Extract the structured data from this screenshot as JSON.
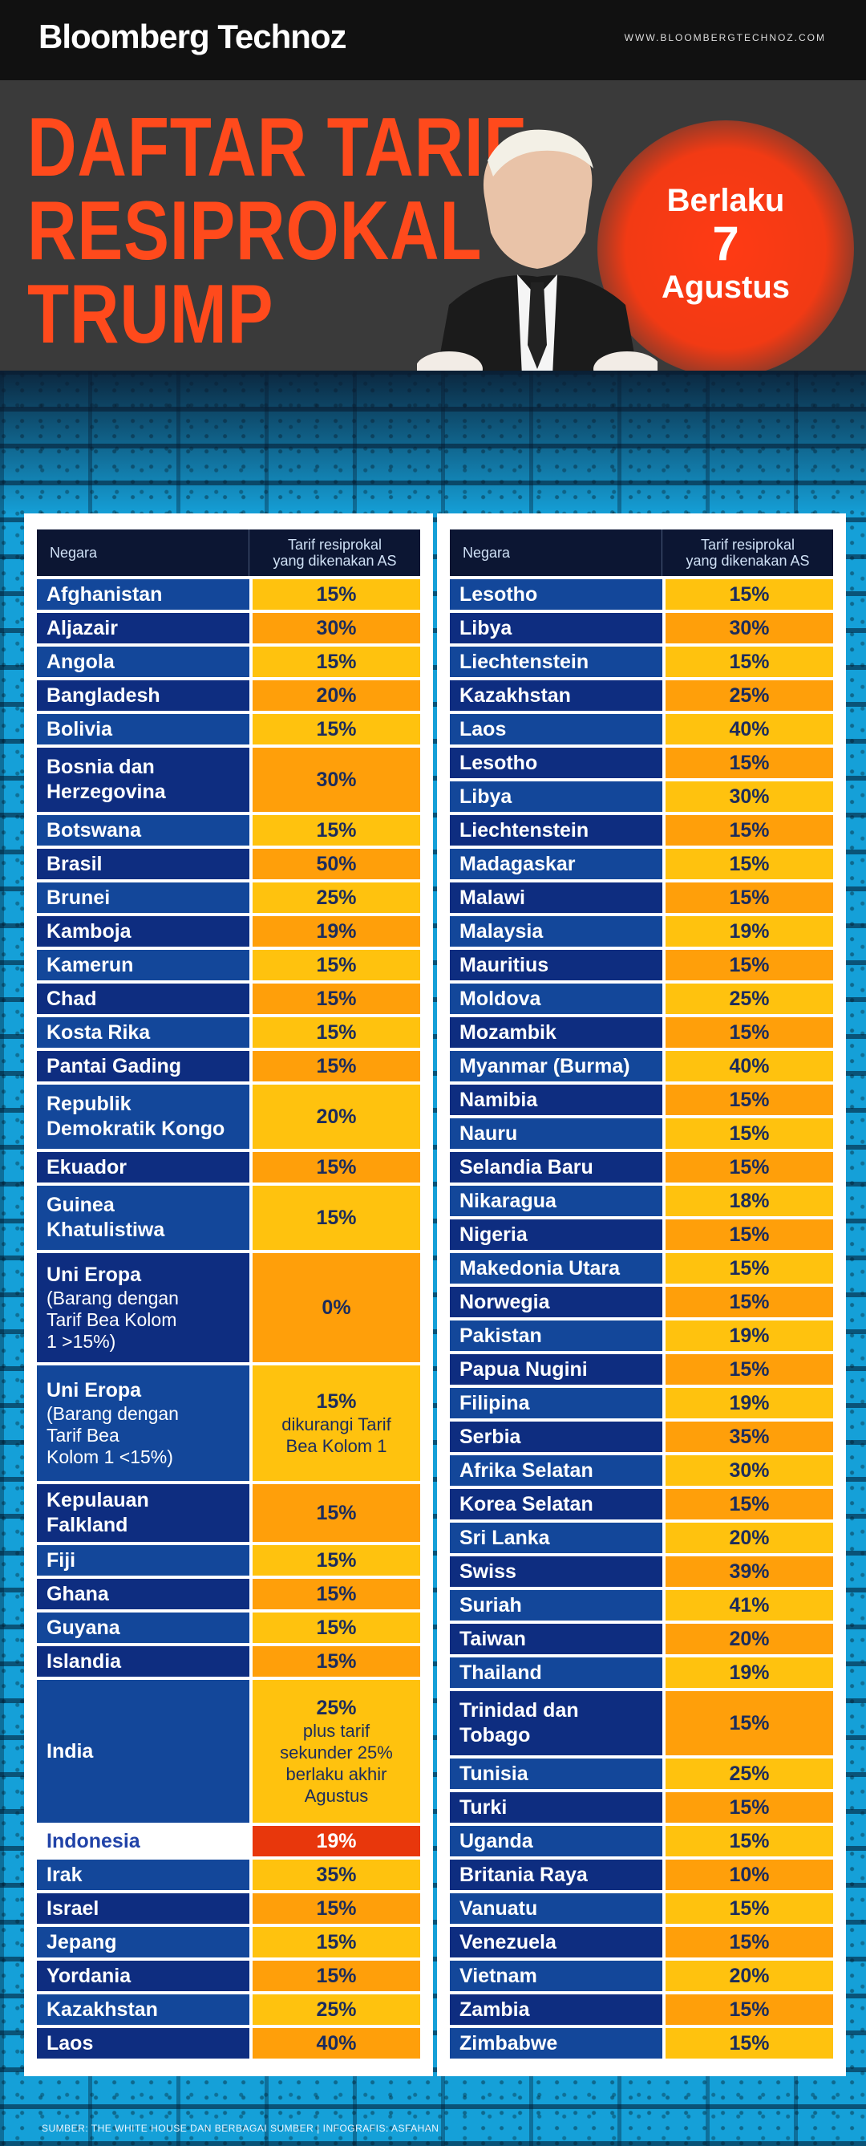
{
  "brand": "Bloomberg Technoz",
  "site": "WWW.BLOOMBERGTECHNOZ.COM",
  "title": [
    "DAFTAR TARIF",
    "RESIPROKAL",
    "TRUMP"
  ],
  "badge": {
    "line1": "Berlaku",
    "line2": "7",
    "line3": "Agustus"
  },
  "table_header": {
    "col1": "Negara",
    "col2_line1": "Tarif resiprokal",
    "col2_line2": "yang dikenakan AS"
  },
  "left_rows": [
    {
      "lines": [
        "Afghanistan"
      ],
      "value": "15%",
      "h": 38
    },
    {
      "lines": [
        "Aljazair"
      ],
      "value": "30%",
      "h": 38
    },
    {
      "lines": [
        "Angola"
      ],
      "value": "15%",
      "h": 38
    },
    {
      "lines": [
        "Bangladesh"
      ],
      "value": "20%",
      "h": 38
    },
    {
      "lines": [
        "Bolivia"
      ],
      "value": "15%",
      "h": 38
    },
    {
      "lines": [
        "Bosnia dan",
        "Herzegovina"
      ],
      "value": "30%",
      "h": 80
    },
    {
      "lines": [
        "Botswana"
      ],
      "value": "15%",
      "h": 38
    },
    {
      "lines": [
        "Brasil"
      ],
      "value": "50%",
      "h": 38
    },
    {
      "lines": [
        "Brunei"
      ],
      "value": "25%",
      "h": 38
    },
    {
      "lines": [
        "Kamboja"
      ],
      "value": "19%",
      "h": 38
    },
    {
      "lines": [
        "Kamerun"
      ],
      "value": "15%",
      "h": 38
    },
    {
      "lines": [
        "Chad"
      ],
      "value": "15%",
      "h": 38
    },
    {
      "lines": [
        "Kosta Rika"
      ],
      "value": "15%",
      "h": 38
    },
    {
      "lines": [
        "Pantai Gading"
      ],
      "value": "15%",
      "h": 38
    },
    {
      "lines": [
        "Republik",
        "Demokratik Kongo"
      ],
      "value": "20%",
      "h": 80
    },
    {
      "lines": [
        "Ekuador"
      ],
      "value": "15%",
      "h": 38
    },
    {
      "lines": [
        "Guinea",
        "Khatulistiwa"
      ],
      "value": "15%",
      "h": 80
    },
    {
      "lines": [
        "Uni Eropa"
      ],
      "sub": [
        "(Barang dengan",
        "Tarif Bea Kolom",
        "1 >15%)"
      ],
      "value": "0%",
      "h": 136
    },
    {
      "lines": [
        "Uni Eropa"
      ],
      "sub": [
        "(Barang dengan",
        "Tarif Bea",
        "Kolom 1 <15%)"
      ],
      "value": "15%",
      "vsub": [
        "dikurangi Tarif",
        "Bea Kolom 1"
      ],
      "h": 144
    },
    {
      "lines": [
        "Kepulauan",
        "Falkland"
      ],
      "value": "15%",
      "h": 72
    },
    {
      "lines": [
        "Fiji"
      ],
      "value": "15%",
      "h": 38
    },
    {
      "lines": [
        "Ghana"
      ],
      "value": "15%",
      "h": 38
    },
    {
      "lines": [
        "Guyana"
      ],
      "value": "15%",
      "h": 38
    },
    {
      "lines": [
        "Islandia"
      ],
      "value": "15%",
      "h": 38
    },
    {
      "lines": [
        "India"
      ],
      "value": "25%",
      "vsub": [
        "plus tarif",
        "sekunder 25%",
        "berlaku akhir",
        "Agustus"
      ],
      "h": 178
    },
    {
      "lines": [
        "Indonesia"
      ],
      "value": "19%",
      "h": 38,
      "highlight": true
    },
    {
      "lines": [
        "Irak"
      ],
      "value": "35%",
      "h": 38
    },
    {
      "lines": [
        "Israel"
      ],
      "value": "15%",
      "h": 38
    },
    {
      "lines": [
        "Jepang"
      ],
      "value": "15%",
      "h": 38
    },
    {
      "lines": [
        "Yordania"
      ],
      "value": "15%",
      "h": 38
    },
    {
      "lines": [
        "Kazakhstan"
      ],
      "value": "25%",
      "h": 38
    },
    {
      "lines": [
        "Laos"
      ],
      "value": "40%",
      "h": 38
    }
  ],
  "right_rows": [
    {
      "lines": [
        "Lesotho"
      ],
      "value": "15%",
      "h": 38
    },
    {
      "lines": [
        "Libya"
      ],
      "value": "30%",
      "h": 38
    },
    {
      "lines": [
        "Liechtenstein"
      ],
      "value": "15%",
      "h": 38
    },
    {
      "lines": [
        "Kazakhstan"
      ],
      "value": "25%",
      "h": 38
    },
    {
      "lines": [
        "Laos"
      ],
      "value": "40%",
      "h": 38
    },
    {
      "lines": [
        "Lesotho"
      ],
      "value": "15%",
      "h": 38
    },
    {
      "lines": [
        "Libya"
      ],
      "value": "30%",
      "h": 38
    },
    {
      "lines": [
        "Liechtenstein"
      ],
      "value": "15%",
      "h": 38
    },
    {
      "lines": [
        "Madagaskar"
      ],
      "value": "15%",
      "h": 38
    },
    {
      "lines": [
        "Malawi"
      ],
      "value": "15%",
      "h": 38
    },
    {
      "lines": [
        "Malaysia"
      ],
      "value": "19%",
      "h": 38
    },
    {
      "lines": [
        "Mauritius"
      ],
      "value": "15%",
      "h": 38
    },
    {
      "lines": [
        "Moldova"
      ],
      "value": "25%",
      "h": 38
    },
    {
      "lines": [
        "Mozambik"
      ],
      "value": "15%",
      "h": 38
    },
    {
      "lines": [
        "Myanmar (Burma)"
      ],
      "value": "40%",
      "h": 38
    },
    {
      "lines": [
        "Namibia"
      ],
      "value": "15%",
      "h": 38
    },
    {
      "lines": [
        "Nauru"
      ],
      "value": "15%",
      "h": 38
    },
    {
      "lines": [
        "Selandia Baru"
      ],
      "value": "15%",
      "h": 38
    },
    {
      "lines": [
        "Nikaragua"
      ],
      "value": "18%",
      "h": 38
    },
    {
      "lines": [
        "Nigeria"
      ],
      "value": "15%",
      "h": 38
    },
    {
      "lines": [
        "Makedonia Utara"
      ],
      "value": "15%",
      "h": 38
    },
    {
      "lines": [
        "Norwegia"
      ],
      "value": "15%",
      "h": 38
    },
    {
      "lines": [
        "Pakistan"
      ],
      "value": "19%",
      "h": 38
    },
    {
      "lines": [
        "Papua Nugini"
      ],
      "value": "15%",
      "h": 38
    },
    {
      "lines": [
        "Filipina"
      ],
      "value": "19%",
      "h": 38
    },
    {
      "lines": [
        "Serbia"
      ],
      "value": "35%",
      "h": 38
    },
    {
      "lines": [
        "Afrika Selatan"
      ],
      "value": "30%",
      "h": 38
    },
    {
      "lines": [
        "Korea Selatan"
      ],
      "value": "15%",
      "h": 38
    },
    {
      "lines": [
        "Sri Lanka"
      ],
      "value": "20%",
      "h": 38
    },
    {
      "lines": [
        "Swiss"
      ],
      "value": "39%",
      "h": 38
    },
    {
      "lines": [
        "Suriah"
      ],
      "value": "41%",
      "h": 38
    },
    {
      "lines": [
        "Taiwan"
      ],
      "value": "20%",
      "h": 38
    },
    {
      "lines": [
        "Thailand"
      ],
      "value": "19%",
      "h": 38
    },
    {
      "lines": [
        "Trinidad dan",
        "Tobago"
      ],
      "value": "15%",
      "h": 80
    },
    {
      "lines": [
        "Tunisia"
      ],
      "value": "25%",
      "h": 38
    },
    {
      "lines": [
        "Turki"
      ],
      "value": "15%",
      "h": 38
    },
    {
      "lines": [
        "Uganda"
      ],
      "value": "15%",
      "h": 38
    },
    {
      "lines": [
        "Britania Raya"
      ],
      "value": "10%",
      "h": 38
    },
    {
      "lines": [
        "Vanuatu"
      ],
      "value": "15%",
      "h": 38
    },
    {
      "lines": [
        "Venezuela"
      ],
      "value": "15%",
      "h": 38
    },
    {
      "lines": [
        "Vietnam"
      ],
      "value": "20%",
      "h": 38
    },
    {
      "lines": [
        "Zambia"
      ],
      "value": "15%",
      "h": 38
    },
    {
      "lines": [
        "Zimbabwe"
      ],
      "value": "15%",
      "h": 38
    }
  ],
  "footer": "SUMBER: THE WHITE HOUSE DAN BERBAGAI SUMBER | INFOGRAFIS: ASFAHAN",
  "colors": {
    "accent": "#ff4a1c",
    "name_cell_a": "#13479a",
    "name_cell_b": "#0e2d80",
    "value_cell_a": "#ffc20e",
    "value_cell_b": "#ff9f0a",
    "highlight": "#e8370c"
  }
}
